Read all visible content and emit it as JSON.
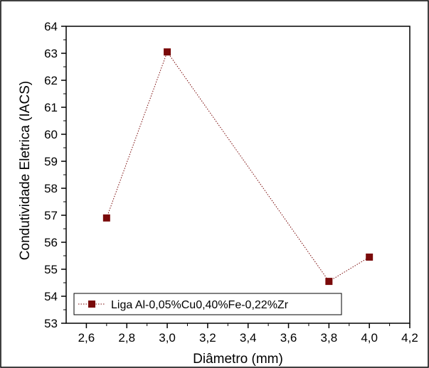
{
  "chart_data": {
    "type": "line",
    "title": "",
    "xlabel": "Diâmetro (mm)",
    "ylabel": "Condutividade Eletrica (IACS)",
    "xlim": [
      2.5,
      4.2
    ],
    "ylim": [
      53,
      64
    ],
    "xticks": [
      "2,6",
      "2,8",
      "3,0",
      "3,2",
      "3,4",
      "3,6",
      "3,8",
      "4,0",
      "4,2"
    ],
    "xtick_values": [
      2.6,
      2.8,
      3.0,
      3.2,
      3.4,
      3.6,
      3.8,
      4.0,
      4.2
    ],
    "yticks": [
      "53",
      "54",
      "55",
      "56",
      "57",
      "58",
      "59",
      "60",
      "61",
      "62",
      "63",
      "64"
    ],
    "ytick_values": [
      53,
      54,
      55,
      56,
      57,
      58,
      59,
      60,
      61,
      62,
      63,
      64
    ],
    "grid": false,
    "legend_position": "bottom-left",
    "series": [
      {
        "name": "Liga Al-0,05%Cu0,40%Fe-0,22%Zr",
        "marker": "square",
        "line_style": "dotted",
        "color": "#7a0a0a",
        "x": [
          2.7,
          3.0,
          3.8,
          4.0
        ],
        "y": [
          56.9,
          63.05,
          54.55,
          55.45
        ]
      }
    ]
  }
}
